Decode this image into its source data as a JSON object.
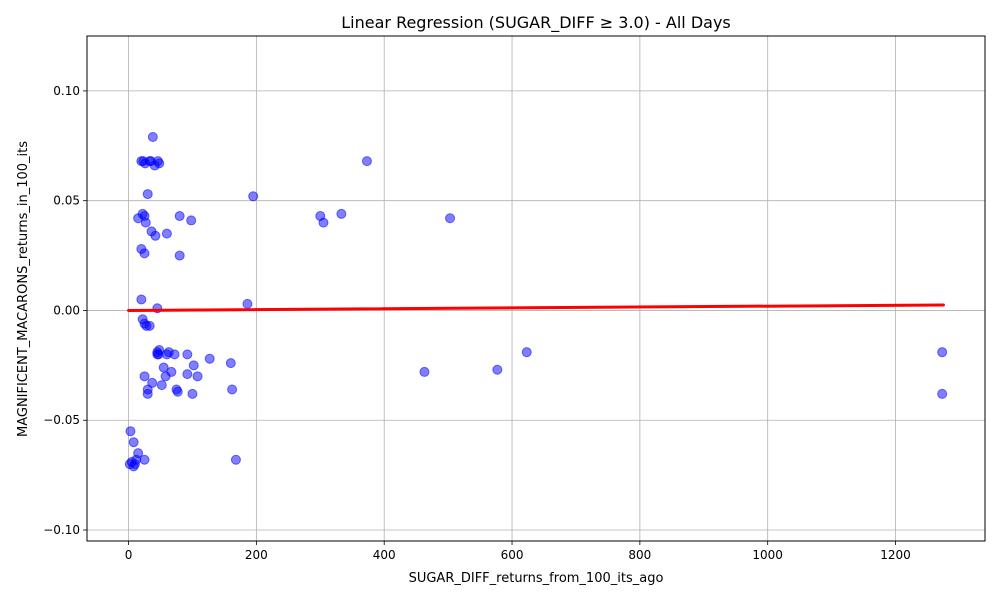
{
  "chart_data": {
    "type": "scatter",
    "title": "Linear Regression (SUGAR_DIFF ≥ 3.0) - All Days",
    "xlabel": "SUGAR_DIFF_returns_from_100_its_ago",
    "ylabel": "MAGNIFICENT_MACARONS_returns_in_100_its",
    "xlim": [
      -65,
      1340
    ],
    "ylim": [
      -0.105,
      0.125
    ],
    "xticks": [
      0,
      200,
      400,
      600,
      800,
      1000,
      1200
    ],
    "xtick_labels": [
      "0",
      "200",
      "400",
      "600",
      "800",
      "1000",
      "1200"
    ],
    "yticks": [
      -0.1,
      -0.05,
      0.0,
      0.05,
      0.1
    ],
    "ytick_labels": [
      "−0.10",
      "−0.05",
      "0.00",
      "0.05",
      "0.10"
    ],
    "grid": true,
    "colors": {
      "points": "#0000ff",
      "regression": "#ff0000",
      "grid": "#b0b0b0"
    },
    "series": [
      {
        "kind": "points",
        "x": [
          20,
          23,
          26,
          33,
          38,
          41,
          46,
          48,
          35,
          30,
          195,
          373,
          300,
          305,
          333,
          503,
          15,
          22,
          25,
          27,
          36,
          60,
          42,
          20,
          25,
          80,
          98,
          80,
          20,
          186,
          45,
          22,
          25,
          28,
          33,
          48,
          45,
          47,
          45,
          60,
          63,
          72,
          92,
          102,
          127,
          160,
          25,
          55,
          58,
          67,
          92,
          108,
          623,
          577,
          463,
          37,
          52,
          75,
          77,
          30,
          30,
          162,
          100,
          1273,
          1273,
          25,
          168,
          2,
          5,
          8,
          10,
          12,
          15,
          8,
          3
        ],
        "y": [
          0.068,
          0.068,
          0.067,
          0.068,
          0.079,
          0.066,
          0.068,
          0.067,
          0.068,
          0.053,
          0.052,
          0.068,
          0.043,
          0.04,
          0.044,
          0.042,
          0.042,
          0.044,
          0.043,
          0.04,
          0.036,
          0.035,
          0.034,
          0.028,
          0.026,
          0.043,
          0.041,
          0.025,
          0.005,
          0.003,
          0.001,
          -0.004,
          -0.006,
          -0.007,
          -0.007,
          -0.018,
          -0.02,
          -0.02,
          -0.019,
          -0.02,
          -0.019,
          -0.02,
          -0.02,
          -0.025,
          -0.022,
          -0.024,
          -0.03,
          -0.026,
          -0.03,
          -0.028,
          -0.029,
          -0.03,
          -0.019,
          -0.027,
          -0.028,
          -0.033,
          -0.034,
          -0.036,
          -0.037,
          -0.038,
          -0.036,
          -0.036,
          -0.038,
          -0.019,
          -0.038,
          -0.068,
          -0.068,
          -0.07,
          -0.069,
          -0.071,
          -0.07,
          -0.068,
          -0.065,
          -0.06,
          -0.055
        ]
      },
      {
        "kind": "regression",
        "x": [
          0,
          1275
        ],
        "y": [
          0.0,
          0.0025
        ]
      }
    ]
  }
}
